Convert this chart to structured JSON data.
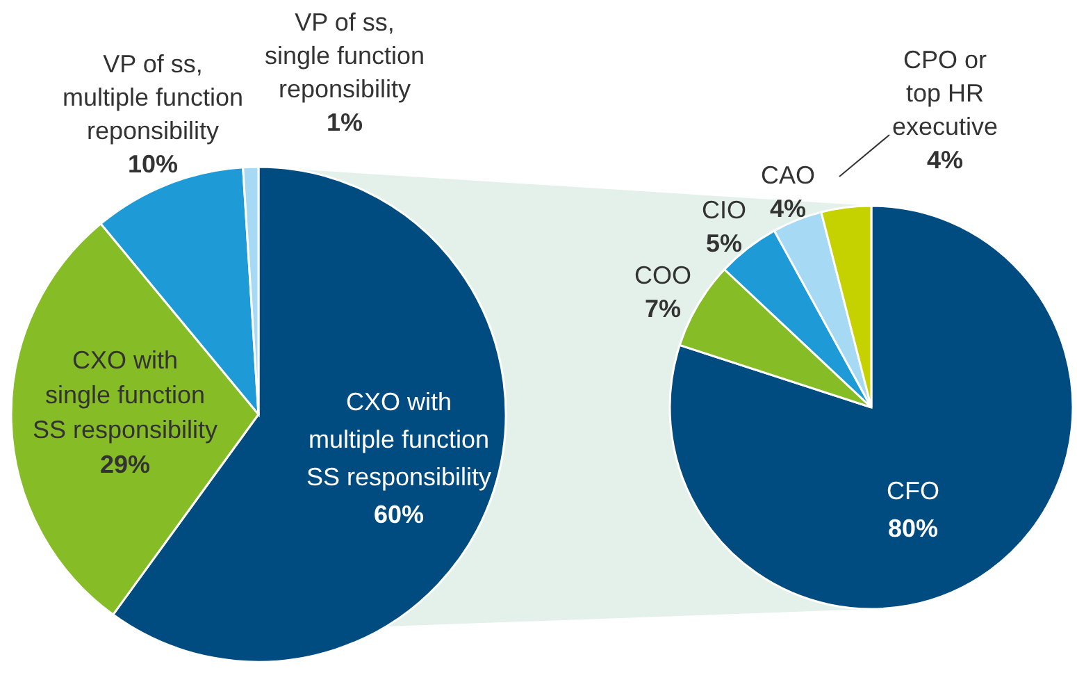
{
  "chart_data": [
    {
      "type": "pie",
      "categories": [
        "CXO with\nmultiple function\nSS responsibility",
        "CXO with\nsingle function\nSS responsibility",
        "VP of ss,\nmultiple function\nreponsibility",
        "VP of ss,\nsingle function\nreponsibility"
      ],
      "values": [
        60,
        29,
        10,
        1
      ],
      "value_labels": [
        "60%",
        "29%",
        "10%",
        "1%"
      ],
      "colors": [
        "#004b7f",
        "#86bc25",
        "#1e9bd7",
        "#a6d9f4"
      ]
    },
    {
      "type": "pie",
      "categories": [
        "CFO",
        "COO",
        "CIO",
        "CAO",
        "CPO or\ntop HR\nexecutive"
      ],
      "values": [
        80,
        7,
        5,
        4,
        4
      ],
      "value_labels": [
        "80%",
        "7%",
        "5%",
        "4%",
        "4%"
      ],
      "colors": [
        "#004b7f",
        "#86bc25",
        "#1e9bd7",
        "#a6d9f4",
        "#c5d200"
      ]
    }
  ]
}
